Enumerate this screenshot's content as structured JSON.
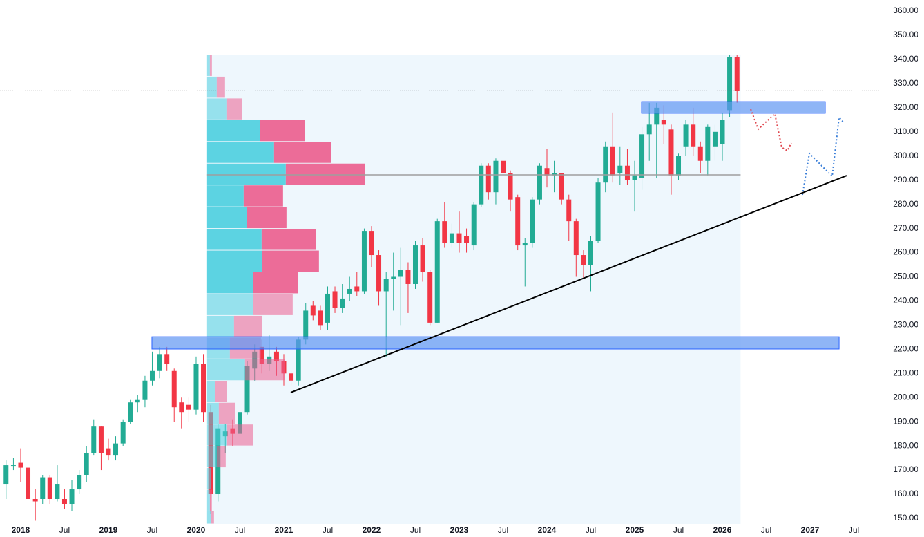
{
  "chart_data": {
    "type": "candlestick",
    "up_color": "#22ab94",
    "down_color": "#f23645",
    "xlim": [
      2017.764,
      2027.803
    ],
    "ylim": [
      147.7,
      364.6
    ],
    "yticks": [
      {
        "value": 150,
        "label": "150.00"
      },
      {
        "value": 160,
        "label": "160.00"
      },
      {
        "value": 170,
        "label": "170.00"
      },
      {
        "value": 180,
        "label": "180.00"
      },
      {
        "value": 190,
        "label": "190.00"
      },
      {
        "value": 200,
        "label": "200.00"
      },
      {
        "value": 210,
        "label": "210.00"
      },
      {
        "value": 220,
        "label": "220.00"
      },
      {
        "value": 230,
        "label": "230.00"
      },
      {
        "value": 240,
        "label": "240.00"
      },
      {
        "value": 250,
        "label": "250.00"
      },
      {
        "value": 260,
        "label": "260.00"
      },
      {
        "value": 270,
        "label": "270.00"
      },
      {
        "value": 280,
        "label": "280.00"
      },
      {
        "value": 290,
        "label": "290.00"
      },
      {
        "value": 300,
        "label": "300.00"
      },
      {
        "value": 310,
        "label": "310.00"
      },
      {
        "value": 320,
        "label": "320.00"
      },
      {
        "value": 330,
        "label": "330.00"
      },
      {
        "value": 340,
        "label": "340.00"
      },
      {
        "value": 350,
        "label": "350.00"
      },
      {
        "value": 360,
        "label": "360.00"
      }
    ],
    "xticks": [
      2018,
      {
        "value": 2018.5,
        "label": "Jul"
      },
      2019,
      {
        "value": 2019.5,
        "label": "Jul"
      },
      2020,
      {
        "value": 2020.5,
        "label": "Jul"
      },
      2021,
      {
        "value": 2021.5,
        "label": "Jul"
      },
      2022,
      {
        "value": 2022.5,
        "label": "Jul"
      },
      2023,
      {
        "value": 2023.5,
        "label": "Jul"
      },
      2024,
      {
        "value": 2024.5,
        "label": "Jul"
      },
      2025,
      {
        "value": 2025.5,
        "label": "Jul"
      },
      2026,
      {
        "value": 2026.5,
        "label": "Jul"
      },
      2027,
      {
        "value": 2027.5,
        "label": "Jul"
      }
    ],
    "candles": {
      "x": [
        2017.833,
        2017.917,
        2018,
        2018.083,
        2018.167,
        2018.25,
        2018.333,
        2018.417,
        2018.5,
        2018.583,
        2018.667,
        2018.75,
        2018.833,
        2018.917,
        2019,
        2019.083,
        2019.167,
        2019.25,
        2019.333,
        2019.417,
        2019.5,
        2019.583,
        2019.667,
        2019.75,
        2019.833,
        2019.917,
        2020,
        2020.083,
        2020.167,
        2020.25,
        2020.333,
        2020.417,
        2020.5,
        2020.583,
        2020.667,
        2020.75,
        2020.833,
        2020.917,
        2021,
        2021.083,
        2021.167,
        2021.25,
        2021.333,
        2021.417,
        2021.5,
        2021.583,
        2021.667,
        2021.75,
        2021.833,
        2021.917,
        2022,
        2022.083,
        2022.167,
        2022.25,
        2022.333,
        2022.417,
        2022.5,
        2022.583,
        2022.667,
        2022.75,
        2022.833,
        2022.917,
        2023,
        2023.083,
        2023.167,
        2023.25,
        2023.333,
        2023.417,
        2023.5,
        2023.583,
        2023.667,
        2023.75,
        2023.833,
        2023.917,
        2024,
        2024.083,
        2024.167,
        2024.25,
        2024.333,
        2024.417,
        2024.5,
        2024.583,
        2024.667,
        2024.75,
        2024.833,
        2024.917,
        2025,
        2025.083,
        2025.167,
        2025.25,
        2025.333,
        2025.417,
        2025.5,
        2025.583,
        2025.667,
        2025.75,
        2025.833,
        2025.917,
        2026,
        2026.083,
        2026.167
      ],
      "open": [
        164,
        172,
        173,
        171,
        158,
        158,
        167,
        158,
        158,
        156,
        162,
        168,
        177,
        188,
        179,
        176,
        181,
        190,
        198,
        199,
        207,
        211,
        218,
        211,
        198,
        197,
        195,
        214,
        194,
        160,
        184,
        187,
        185,
        194,
        212,
        221,
        214,
        219,
        215,
        210,
        207,
        224,
        238,
        236,
        231,
        244,
        237,
        243,
        246,
        244,
        269,
        259,
        244,
        249,
        250,
        253,
        247,
        263,
        252,
        231,
        273,
        264,
        268,
        267,
        263,
        280,
        296,
        285,
        298,
        293,
        283,
        263,
        264,
        282,
        295,
        292,
        293,
        282,
        273,
        259,
        255,
        265,
        289,
        304,
        293,
        296,
        290,
        291,
        309,
        313,
        315,
        311,
        292,
        304,
        313,
        304,
        298,
        304,
        305,
        319,
        341
      ],
      "high": [
        174,
        175,
        179,
        172,
        162,
        168,
        168,
        172,
        162,
        166,
        170,
        180,
        191,
        188,
        183,
        184,
        191,
        199,
        201,
        209,
        219,
        221,
        221,
        212,
        200,
        200,
        217,
        218,
        197,
        189,
        189,
        191,
        196,
        215,
        222,
        224,
        226,
        221,
        218,
        211,
        225,
        239,
        240,
        238,
        246,
        246,
        247,
        250,
        252,
        270,
        271,
        261,
        252,
        260,
        262,
        256,
        265,
        266,
        253,
        274,
        281,
        272,
        277,
        270,
        281,
        297,
        297,
        299,
        300,
        294,
        284,
        266,
        283,
        297,
        303,
        298,
        293,
        284,
        274,
        261,
        267,
        291,
        306,
        318,
        304,
        303,
        298,
        312,
        322,
        322,
        321,
        313,
        301,
        315,
        320,
        306,
        313,
        313,
        318,
        342,
        342
      ],
      "low": [
        158,
        170,
        165,
        155,
        149,
        156,
        156,
        157,
        154,
        153,
        160,
        165,
        176,
        170,
        174,
        174,
        180,
        189,
        194,
        196,
        205,
        208,
        211,
        190,
        187,
        190,
        193,
        190,
        152,
        157,
        177,
        180,
        182,
        193,
        207,
        210,
        211,
        209,
        205,
        205,
        205,
        222,
        232,
        228,
        228,
        235,
        235,
        240,
        242,
        243,
        254,
        238,
        217,
        236,
        230,
        235,
        245,
        248,
        230,
        231,
        262,
        262,
        260,
        260,
        261,
        279,
        282,
        280,
        289,
        277,
        261,
        246,
        262,
        280,
        287,
        285,
        280,
        265,
        250,
        249,
        244,
        264,
        285,
        289,
        288,
        288,
        277,
        286,
        298,
        291,
        305,
        284,
        290,
        300,
        300,
        293,
        292,
        298,
        298,
        316,
        322
      ],
      "close": [
        172,
        172,
        171,
        158,
        157,
        167,
        158,
        164,
        156,
        162,
        168,
        177,
        188,
        177,
        176,
        181,
        190,
        198,
        199,
        207,
        211,
        218,
        214,
        196,
        194,
        195,
        214,
        194,
        160,
        187,
        186,
        185,
        194,
        213,
        219,
        214,
        217,
        215,
        210,
        207,
        224,
        236,
        234,
        230,
        243,
        237,
        241,
        245,
        244,
        269,
        259,
        244,
        249,
        250,
        253,
        247,
        263,
        252,
        231,
        273,
        264,
        268,
        264,
        264,
        280,
        296,
        285,
        298,
        293,
        282,
        263,
        264,
        282,
        296,
        292,
        293,
        282,
        273,
        259,
        255,
        265,
        289,
        304,
        292,
        296,
        290,
        292,
        309,
        313,
        320,
        313,
        292,
        300,
        313,
        304,
        298,
        312,
        310,
        315,
        341,
        327
      ]
    },
    "volume_profile": {
      "x_range": [
        2020.125,
        2026.208
      ],
      "bins": [
        342,
        333,
        324,
        315,
        306,
        297,
        288,
        279,
        270,
        261,
        252,
        243,
        234,
        225,
        216,
        207,
        198,
        189,
        180,
        171,
        162,
        153,
        144
      ],
      "up": [
        4,
        14,
        28,
        77,
        97,
        114,
        53,
        58,
        79,
        80,
        67,
        67,
        39,
        33,
        55,
        12,
        17,
        28,
        14,
        6,
        4,
        6
      ],
      "down": [
        3,
        12,
        23,
        65,
        83,
        115,
        57,
        57,
        79,
        82,
        65,
        57,
        41,
        45,
        58,
        17,
        24,
        39,
        13,
        0,
        3,
        4
      ],
      "in_value_area": [
        false,
        false,
        false,
        true,
        true,
        true,
        true,
        true,
        true,
        true,
        true,
        false,
        false,
        false,
        false,
        false,
        false,
        false,
        false,
        false,
        false,
        false
      ],
      "up_color": "#4fcfe0",
      "down_color": "#ec5f8f",
      "background": "#eef7fd",
      "poc": 292.2
    },
    "zones": [
      {
        "x": [
          2019.496,
          2027.331
        ],
        "y": [
          220.1,
          225.2
        ],
        "color": "#5f95f2"
      },
      {
        "x": [
          2025.079,
          2027.173
        ],
        "y": [
          317.7,
          322.5
        ],
        "color": "#5f95f2"
      }
    ],
    "trendline": {
      "x": [
        2021.079,
        2027.417
      ],
      "y": [
        202.1,
        291.9
      ],
      "color": "#000000"
    },
    "forecasts": [
      {
        "x": [
          2026.323,
          2026.409,
          2026.598,
          2026.677,
          2026.74,
          2026.787
        ],
        "y": [
          319.4,
          311.1,
          317.5,
          303.6,
          302.2,
          305.4
        ],
        "color": "#e0464e"
      },
      {
        "x": [
          2026.913,
          2026.992,
          2027.252,
          2027.331,
          2027.386
        ],
        "y": [
          283.9,
          301.1,
          291.6,
          316.0,
          313.7
        ],
        "color": "#3b7fd9"
      }
    ]
  }
}
